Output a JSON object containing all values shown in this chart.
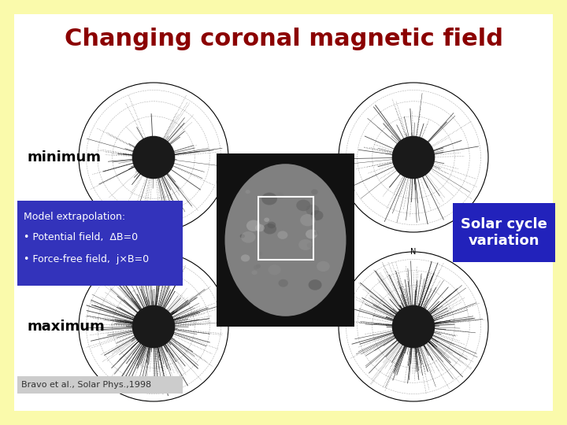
{
  "title": "Changing coronal magnetic field",
  "title_color": "#8B0000",
  "title_fontsize": 22,
  "background_color": "#FAFAAB",
  "white_bg": "#FFFFFF",
  "minimum_label": "minimum",
  "maximum_label": "maximum",
  "model_box_color": "#3333BB",
  "model_text_color": "#FFFFFF",
  "model_title": "Model extrapolation:",
  "model_bullet1": "• Potential field,  ΔB=0",
  "model_bullet2": "• Force-free field,  j×B=0",
  "solar_box_color": "#2222BB",
  "solar_text": "Solar cycle\nvariation",
  "solar_text_color": "#FFFFFF",
  "citation_bg": "#CCCCCC",
  "citation_text": "Bravo et al., Solar Phys.,1998",
  "citation_color": "#333333",
  "fig_width": 7.2,
  "fig_height": 5.4,
  "dpi": 100
}
